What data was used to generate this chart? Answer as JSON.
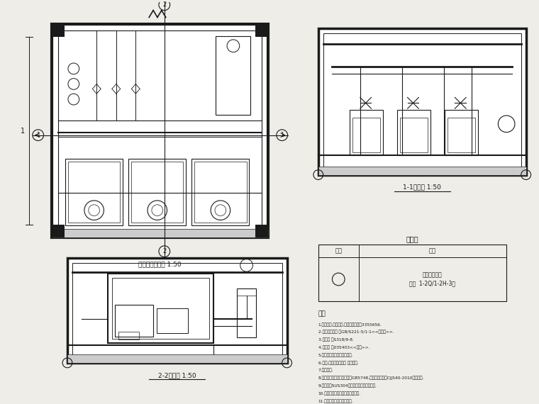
{
  "bg_color": "#eeede8",
  "line_color": "#1a1a1a",
  "plan_label": "给水泵房平面图 1:50",
  "section11_label": "1-1剖面图 1:50",
  "section22_label": "2-2剖面图 1:50",
  "legend_title": "图例表",
  "legend_col1": "符号",
  "legend_col2": "名称",
  "legend_row1_name_l1": "变频调速泵组",
  "legend_row1_name_l2": "型号  1-2Q/1-2H-3台",
  "notes_title": "注释",
  "note1": "1.水泵选型,水泵性能,请咒厂商广告号3355656.",
  "note2": "2.设备接口尺寸 查GB/S221-5/1-1<<给水设>>.",
  "note3": "3.阎阀查 广S318/9-8.",
  "note4": "4.水表厂 广035403<<给水>>.",
  "note5": "5.控制柜按电气专业厂图设置.",
  "note6": "6.渏坑,渏坑设置在各台 水泵中间.",
  "note7": "7.设始流量.",
  "note8": "8.水质水量水压等参数标准切GB5748,上水标准切山平CJJS40-2010输水标准.",
  "note9": "9.水泵流量SUS304不锈锂链接获得最优性能.",
  "note10": "10.水泵连接各设备全部完工后调试.",
  "note11": "11.未说明的内容按常规处理."
}
